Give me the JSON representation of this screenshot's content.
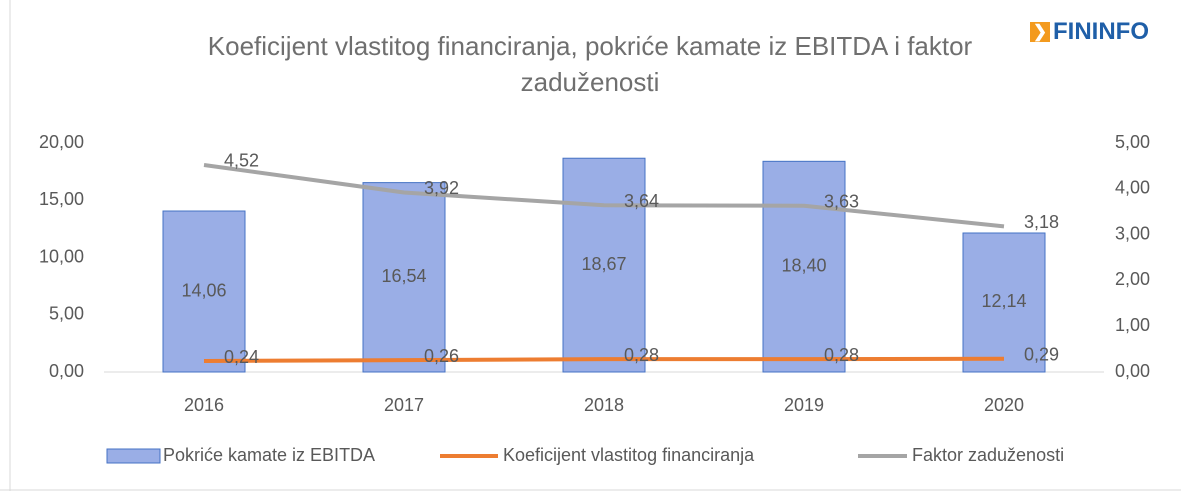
{
  "chart_data": {
    "type": "bar",
    "title": "Koeficijent vlastitog financiranja, pokriće kamate iz EBITDA i faktor zaduženosti",
    "logo": "FININFO",
    "categories": [
      "2016",
      "2017",
      "2018",
      "2019",
      "2020"
    ],
    "series": [
      {
        "name": "Pokriće kamate iz EBITDA",
        "type": "bar",
        "color": "#9aaee6",
        "values": [
          14.06,
          16.54,
          18.67,
          18.4,
          12.14
        ],
        "value_labels": [
          "14,06",
          "16,54",
          "18,67",
          "18,40",
          "12,14"
        ]
      },
      {
        "name": "Koeficijent vlastitog financiranja",
        "type": "line",
        "axis": "y2",
        "color": "#ed7d31",
        "values": [
          0.24,
          0.26,
          0.28,
          0.28,
          0.29
        ],
        "value_labels": [
          "0,24",
          "0,26",
          "0,28",
          "0,28",
          "0,29"
        ]
      },
      {
        "name": "Faktor zaduženosti",
        "type": "line",
        "axis": "y2",
        "color": "#a5a5a5",
        "values": [
          4.52,
          3.92,
          3.64,
          3.63,
          3.18
        ],
        "value_labels": [
          "4,52",
          "3,92",
          "3,64",
          "3,63",
          "3,18"
        ]
      }
    ],
    "ylim": [
      0,
      20
    ],
    "yticks": [
      {
        "value": 0,
        "label": "0,00"
      },
      {
        "value": 5,
        "label": "5,00"
      },
      {
        "value": 10,
        "label": "10,00"
      },
      {
        "value": 15,
        "label": "15,00"
      },
      {
        "value": 20,
        "label": "20,00"
      }
    ],
    "y2lim": [
      0,
      5
    ],
    "y2ticks": [
      {
        "value": 0,
        "label": "0,00"
      },
      {
        "value": 1,
        "label": "1,00"
      },
      {
        "value": 2,
        "label": "2,00"
      },
      {
        "value": 3,
        "label": "3,00"
      },
      {
        "value": 4,
        "label": "4,00"
      },
      {
        "value": 5,
        "label": "5,00"
      }
    ],
    "legend": "bottom"
  }
}
